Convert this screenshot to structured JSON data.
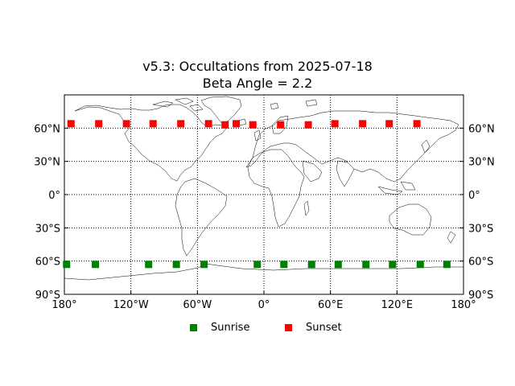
{
  "chart_data": {
    "type": "scatter",
    "title": "v5.3: Occultations from 2025-07-18",
    "subtitle": "Beta Angle = 2.2",
    "xlabel": "",
    "ylabel": "",
    "xlim": [
      -180,
      180
    ],
    "ylim": [
      -90,
      90
    ],
    "x_ticks": [
      {
        "value": -180,
        "label": "180°"
      },
      {
        "value": -120,
        "label": "120°W"
      },
      {
        "value": -60,
        "label": "60°W"
      },
      {
        "value": 0,
        "label": "0°"
      },
      {
        "value": 60,
        "label": "60°E"
      },
      {
        "value": 120,
        "label": "120°E"
      },
      {
        "value": 180,
        "label": "180°"
      }
    ],
    "y_ticks": [
      {
        "value": 60,
        "label": "60°N"
      },
      {
        "value": 30,
        "label": "30°N"
      },
      {
        "value": 0,
        "label": "0°"
      },
      {
        "value": -30,
        "label": "30°S"
      },
      {
        "value": -60,
        "label": "60°S"
      },
      {
        "value": -90,
        "label": "90°S"
      }
    ],
    "grid": true,
    "legend_position": "bottom-center",
    "series": [
      {
        "name": "Sunrise",
        "color": "#008000",
        "marker": "square",
        "points": [
          {
            "x": -178,
            "y": -63
          },
          {
            "x": -152,
            "y": -63
          },
          {
            "x": -104,
            "y": -63
          },
          {
            "x": -79,
            "y": -63
          },
          {
            "x": -54,
            "y": -63
          },
          {
            "x": -6,
            "y": -63
          },
          {
            "x": 18,
            "y": -63
          },
          {
            "x": 43,
            "y": -63
          },
          {
            "x": 67,
            "y": -63
          },
          {
            "x": 92,
            "y": -63
          },
          {
            "x": 116,
            "y": -63
          },
          {
            "x": 141,
            "y": -63
          },
          {
            "x": 165,
            "y": -63
          }
        ]
      },
      {
        "name": "Sunset",
        "color": "#ff0000",
        "marker": "square",
        "points": [
          {
            "x": -174,
            "y": 64
          },
          {
            "x": -149,
            "y": 64
          },
          {
            "x": -124,
            "y": 64
          },
          {
            "x": -100,
            "y": 64
          },
          {
            "x": -75,
            "y": 64
          },
          {
            "x": -50,
            "y": 64
          },
          {
            "x": -35,
            "y": 63
          },
          {
            "x": -25,
            "y": 64
          },
          {
            "x": -10,
            "y": 63
          },
          {
            "x": 15,
            "y": 63
          },
          {
            "x": 40,
            "y": 63
          },
          {
            "x": 64,
            "y": 64
          },
          {
            "x": 89,
            "y": 64
          },
          {
            "x": 113,
            "y": 64
          },
          {
            "x": 138,
            "y": 64
          }
        ]
      }
    ]
  }
}
